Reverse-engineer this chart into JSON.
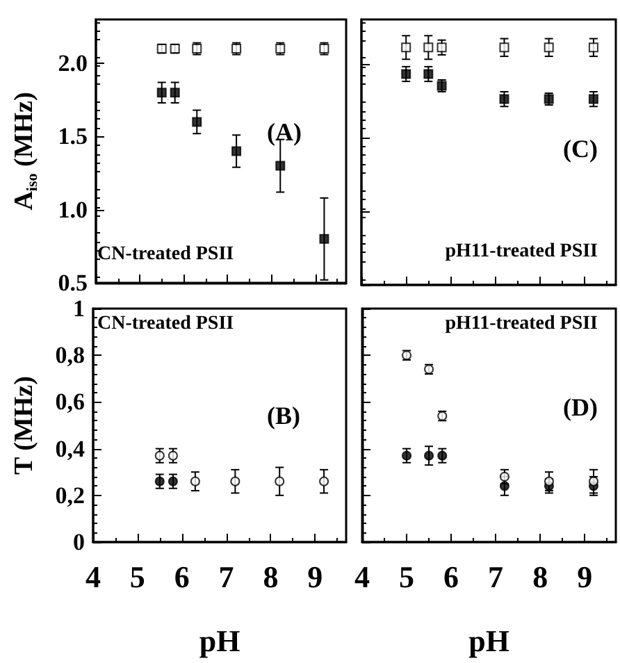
{
  "chart_data": [
    {
      "type": "scatter",
      "ylabel": "A$_{iso}$ (MHz)",
      "annotations": [
        "CN-treated PSII",
        "(A)"
      ],
      "marker": "square",
      "xlim": [
        4,
        9.7
      ],
      "xticks": [
        4,
        5,
        6,
        7,
        8,
        9
      ],
      "ylim": [
        0.5,
        2.3
      ],
      "yticks": [
        {
          "value": 0.5,
          "label": "0.5"
        },
        {
          "value": 1,
          "label": "1.0"
        },
        1.5,
        {
          "value": 2,
          "label": "2.0"
        }
      ],
      "tick_labels": "y",
      "series": [
        {
          "color": "#000000",
          "x": [
            5.5,
            5.8,
            6.3,
            7.2,
            8.2,
            9.2
          ],
          "values": [
            1.8,
            1.8,
            1.6,
            1.4,
            1.3,
            0.8
          ],
          "errors": [
            0.07,
            0.07,
            0.08,
            0.11,
            0.18,
            0.28
          ]
        },
        {
          "color": "#000000",
          "x": [
            5.5,
            5.8,
            6.3,
            7.2,
            8.2,
            9.2
          ],
          "values": [
            2.1,
            2.1,
            2.1,
            2.1,
            2.1,
            2.1
          ],
          "errors": [
            0.03,
            0.03,
            0.04,
            0.04,
            0.04,
            0.04
          ]
        }
      ]
    },
    {
      "type": "scatter",
      "annotations": [
        "pH11-treated PSII",
        "(C)"
      ],
      "marker": "square",
      "xlim": [
        4,
        9.7
      ],
      "xticks": [
        4,
        5,
        6,
        7,
        8,
        9
      ],
      "ylim": [
        0.5,
        2.3
      ],
      "yticks": [
        0.5,
        1,
        1.5,
        2
      ],
      "tick_labels": false,
      "series": [
        {
          "color": "#000000",
          "x": [
            5.0,
            5.5,
            5.8,
            7.2,
            8.2,
            9.2
          ],
          "values": [
            1.93,
            1.93,
            1.85,
            1.76,
            1.76,
            1.76
          ],
          "errors": [
            0.05,
            0.05,
            0.04,
            0.05,
            0.04,
            0.05
          ]
        },
        {
          "color": "#000000",
          "x": [
            5.0,
            5.5,
            5.8,
            7.2,
            8.2,
            9.2
          ],
          "values": [
            2.11,
            2.11,
            2.11,
            2.11,
            2.11,
            2.11
          ],
          "errors": [
            0.08,
            0.08,
            0.05,
            0.06,
            0.06,
            0.06
          ]
        }
      ]
    },
    {
      "type": "scatter",
      "xlabel": "pH",
      "ylabel": "T (MHz)",
      "annotations": [
        "CN-treated PSII",
        "(B)"
      ],
      "marker": "circle",
      "xlim": [
        4,
        9.7
      ],
      "xticks": [
        4,
        5,
        6,
        7,
        8,
        9
      ],
      "ylim": [
        0,
        1
      ],
      "yticks": [
        0,
        {
          "value": 0.2,
          "label": "0,2"
        },
        {
          "value": 0.4,
          "label": "0,4"
        },
        {
          "value": 0.6,
          "label": "0,6"
        },
        {
          "value": 0.8,
          "label": "0,8"
        },
        1
      ],
      "series": [
        {
          "color": "#000000",
          "x": [
            5.5,
            5.8
          ],
          "values": [
            0.26,
            0.26
          ],
          "errors": [
            0.03,
            0.03
          ]
        },
        {
          "color": "#000000",
          "x": [
            5.5,
            5.8,
            6.3,
            7.2,
            8.2,
            9.2
          ],
          "values": [
            0.37,
            0.37,
            0.26,
            0.26,
            0.26,
            0.26
          ],
          "errors": [
            0.03,
            0.03,
            0.04,
            0.05,
            0.06,
            0.05
          ]
        }
      ]
    },
    {
      "type": "scatter",
      "xlabel": "pH",
      "annotations": [
        "pH11-treated PSII",
        "(D)"
      ],
      "marker": "circle",
      "xlim": [
        4,
        9.7
      ],
      "xticks": [
        4,
        5,
        6,
        7,
        8,
        9
      ],
      "ylim": [
        0,
        1
      ],
      "yticks": [
        0,
        0.2,
        0.4,
        0.6,
        0.8,
        1
      ],
      "tick_labels": "x",
      "series": [
        {
          "color": "#000000",
          "x": [
            5.0,
            5.5,
            5.8,
            7.2,
            8.2,
            9.2
          ],
          "values": [
            0.37,
            0.37,
            0.37,
            0.24,
            0.24,
            0.24
          ],
          "errors": [
            0.03,
            0.04,
            0.03,
            0.04,
            0.03,
            0.04
          ]
        },
        {
          "color": "#000000",
          "x": [
            5.0,
            5.5,
            5.8,
            7.2,
            8.2,
            9.2
          ],
          "values": [
            0.8,
            0.74,
            0.54,
            0.28,
            0.26,
            0.26
          ],
          "errors": [
            0.02,
            0.02,
            0.02,
            0.03,
            0.04,
            0.05
          ]
        }
      ]
    }
  ]
}
